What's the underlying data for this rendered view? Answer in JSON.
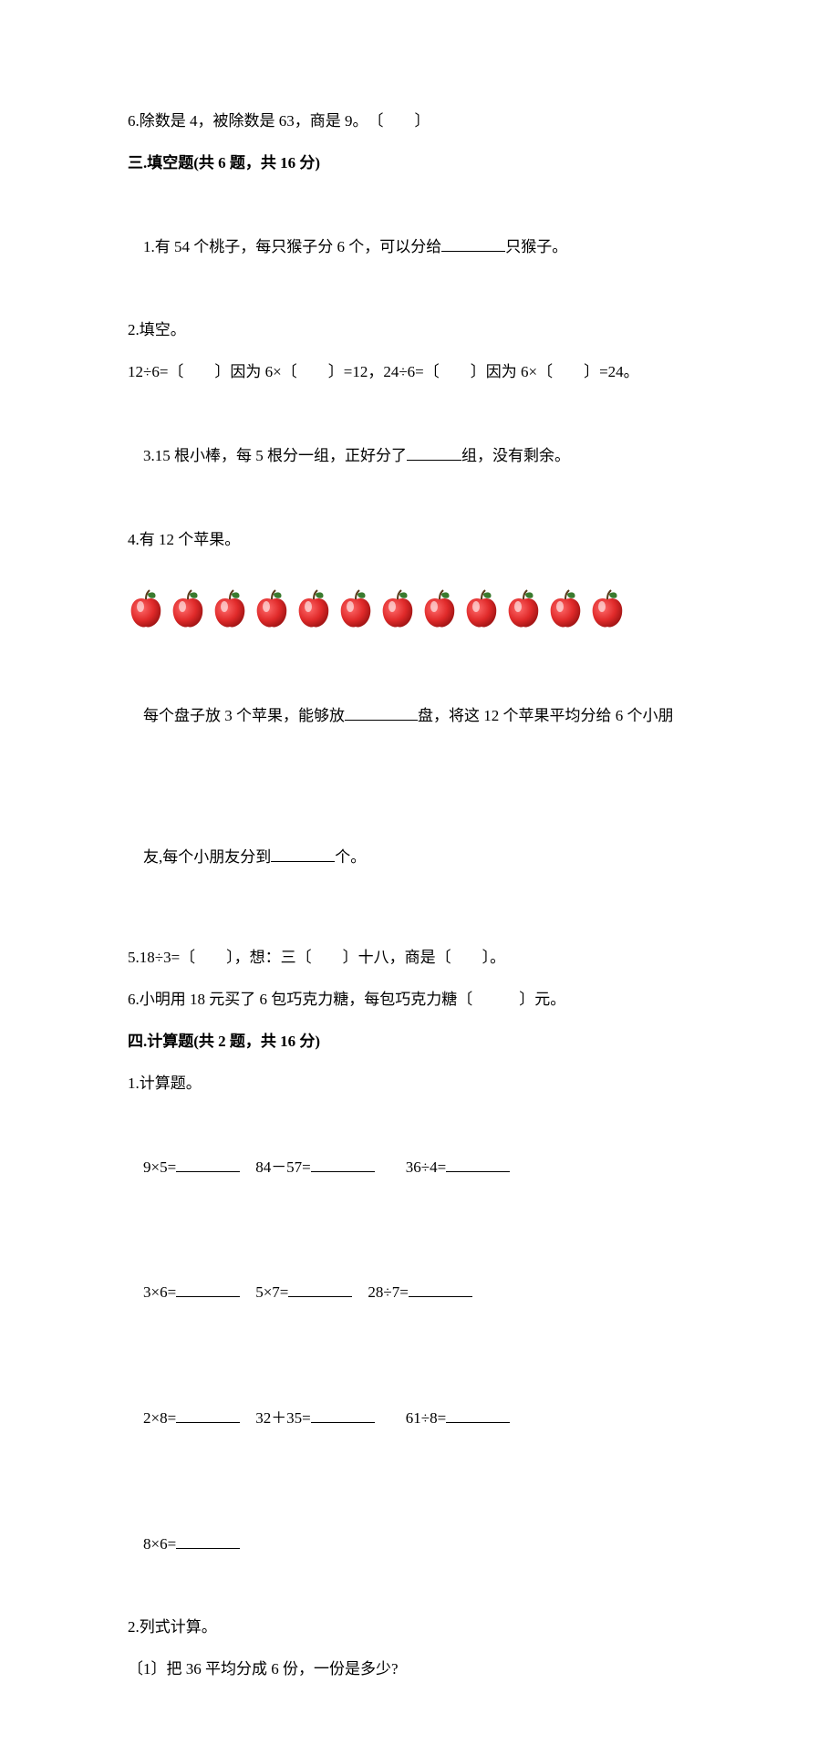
{
  "q6": "6.除数是 4，被除数是 63，商是 9。　〔　　〕",
  "sec3_heading": "三.填空题(共 6 题，共 16 分)",
  "sec3": {
    "q1a": "1.有 54 个桃子，每只猴子分 6 个，可以分给",
    "q1b": "只猴子。",
    "q2": "2.填空。",
    "q2_line": "12÷6=〔　　〕因为 6×〔　　〕=12，24÷6=〔　　〕因为 6×〔　　〕=24。",
    "q3a": "3.15 根小棒，每 5 根分一组，正好分了",
    "q3b": "组，没有剩余。",
    "q4": "4.有 12 个苹果。",
    "q4_line1a": "每个盘子放 3 个苹果，能够放",
    "q4_line1b": "盘，将这 12 个苹果平均分给 6 个小朋",
    "q4_line2a": "友,每个小朋友分到",
    "q4_line2b": "个。",
    "q5": "5.18÷3=〔　　〕，想：三〔　　〕十八，商是〔　　〕。",
    "q6": "6.小明用 18 元买了 6 包巧克力糖，每包巧克力糖〔　　　〕元。"
  },
  "sec4_heading": "四.计算题(共 2 题，共 16 分)",
  "sec4": {
    "q1": "1.计算题。",
    "r1c1": "9×5=",
    "r1c2": "84－57=",
    "r1c3": "36÷4=",
    "r2c1": "3×6=",
    "r2c2": "5×7=",
    "r2c3": "28÷7=",
    "r3c1": "2×8=",
    "r3c2": "32＋35=",
    "r3c3": "61÷8=",
    "r4c1": "8×6=",
    "q2": "2.列式计算。",
    "q2_1": "〔1〕把 36 平均分成 6 份，一份是多少?"
  },
  "apples_count": 12,
  "apple_color": "#e02a2a",
  "apple_leaf_color": "#3a7a2e",
  "apple_highlight": "#ffffff"
}
